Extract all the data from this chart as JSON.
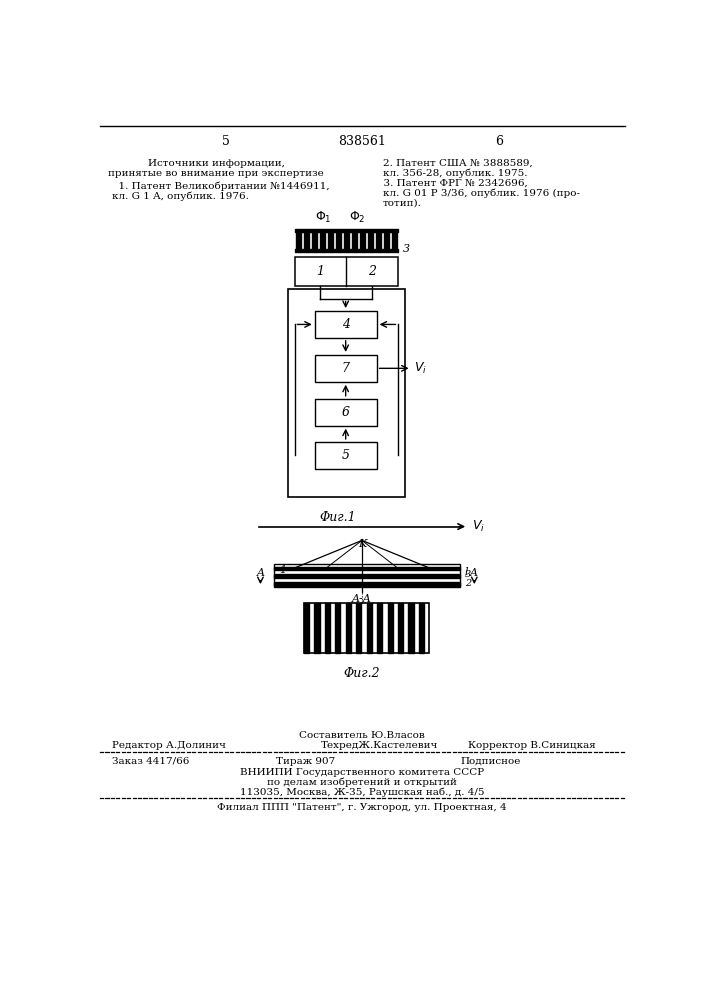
{
  "page_number_left": "5",
  "page_number_center": "838561",
  "page_number_right": "6",
  "text_left_col": [
    "Источники информации,",
    "принятые во внимание при экспертизе",
    "  1. Патент Великобритании №1446911,",
    "кл. G 1 A, опублик. 1976."
  ],
  "text_right_col": [
    "2. Патент США № 3888589,",
    "кл. 356-28, опублик. 1975.",
    "  3. Патент ФРГ № 2342696,",
    "кл. G 01 P 3/36, опублик. 1976 (про-",
    "тотип)."
  ],
  "fig1_caption": "Φиг.1",
  "fig2_caption": "Φиг.2",
  "footer_composer": "Составитель Ю.Власов",
  "footer_line1_left": "Редактор А.Долинич",
  "footer_line1_mid": "ТехредЖ.Кастелевич",
  "footer_line1_right": "Корректор В.Синицкая",
  "footer_line2_left": "Заказ 4417/66",
  "footer_line2_mid": "Тираж 907",
  "footer_line2_right": "Подписное",
  "footer_line3": "ВНИИПИ Государственного комитета СССР",
  "footer_line4": "по делам изобретений и открытий",
  "footer_line5": "113035, Москва, Ж-35, Раушская наб., д. 4/5",
  "footer_line6": "Филиал ППП \"Патент\", г. Ужгород, ул. Проектная, 4",
  "bg_color": "#ffffff",
  "text_color": "#000000"
}
